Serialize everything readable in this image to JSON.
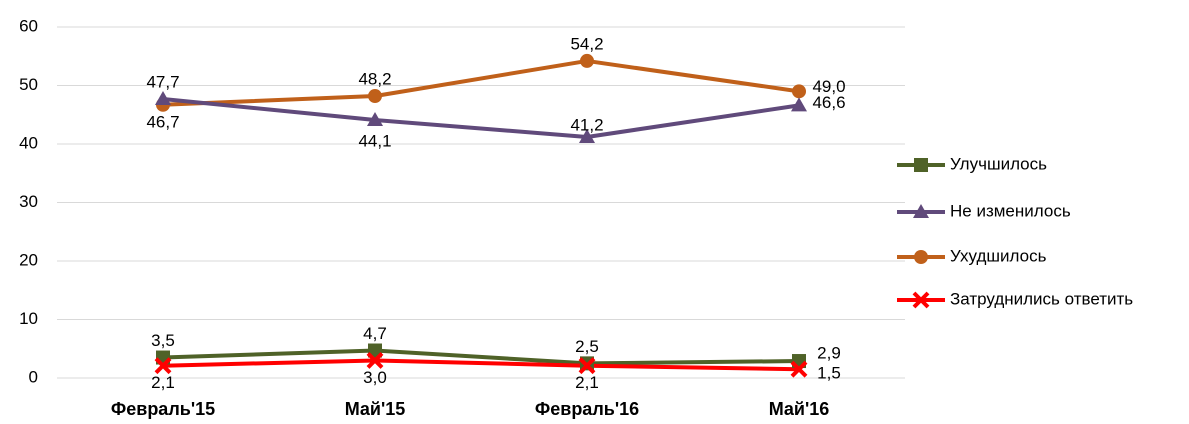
{
  "chart_data": {
    "type": "line",
    "categories": [
      "Февраль'15",
      "Май'15",
      "Февраль'16",
      "Май'16"
    ],
    "ylim": [
      0,
      60
    ],
    "yticks": [
      0,
      10,
      20,
      30,
      40,
      50,
      60
    ],
    "grid": true,
    "legend": "right",
    "series": [
      {
        "name": "Улучшилось",
        "color": "#4f6228",
        "marker": "square",
        "values": [
          3.5,
          4.7,
          2.5,
          2.9
        ],
        "value_labels": [
          "3,5",
          "4,7",
          "2,5",
          "2,9"
        ]
      },
      {
        "name": "Не изменилось",
        "color": "#604a7b",
        "marker": "triangle",
        "values": [
          47.7,
          44.1,
          41.2,
          46.6
        ],
        "value_labels": [
          "47,7",
          "44,1",
          "41,2",
          "46,6"
        ]
      },
      {
        "name": "Ухудшилось",
        "color": "#c0601a",
        "marker": "circle",
        "values": [
          46.7,
          48.2,
          54.2,
          49.0
        ],
        "value_labels": [
          "46,7",
          "48,2",
          "54,2",
          "49,0"
        ]
      },
      {
        "name": "Затруднились ответить",
        "color": "#ff0000",
        "marker": "cross",
        "values": [
          2.1,
          3.0,
          2.1,
          1.5
        ],
        "value_labels": [
          "2,1",
          "3,0",
          "2,1",
          "1,5"
        ]
      }
    ]
  }
}
